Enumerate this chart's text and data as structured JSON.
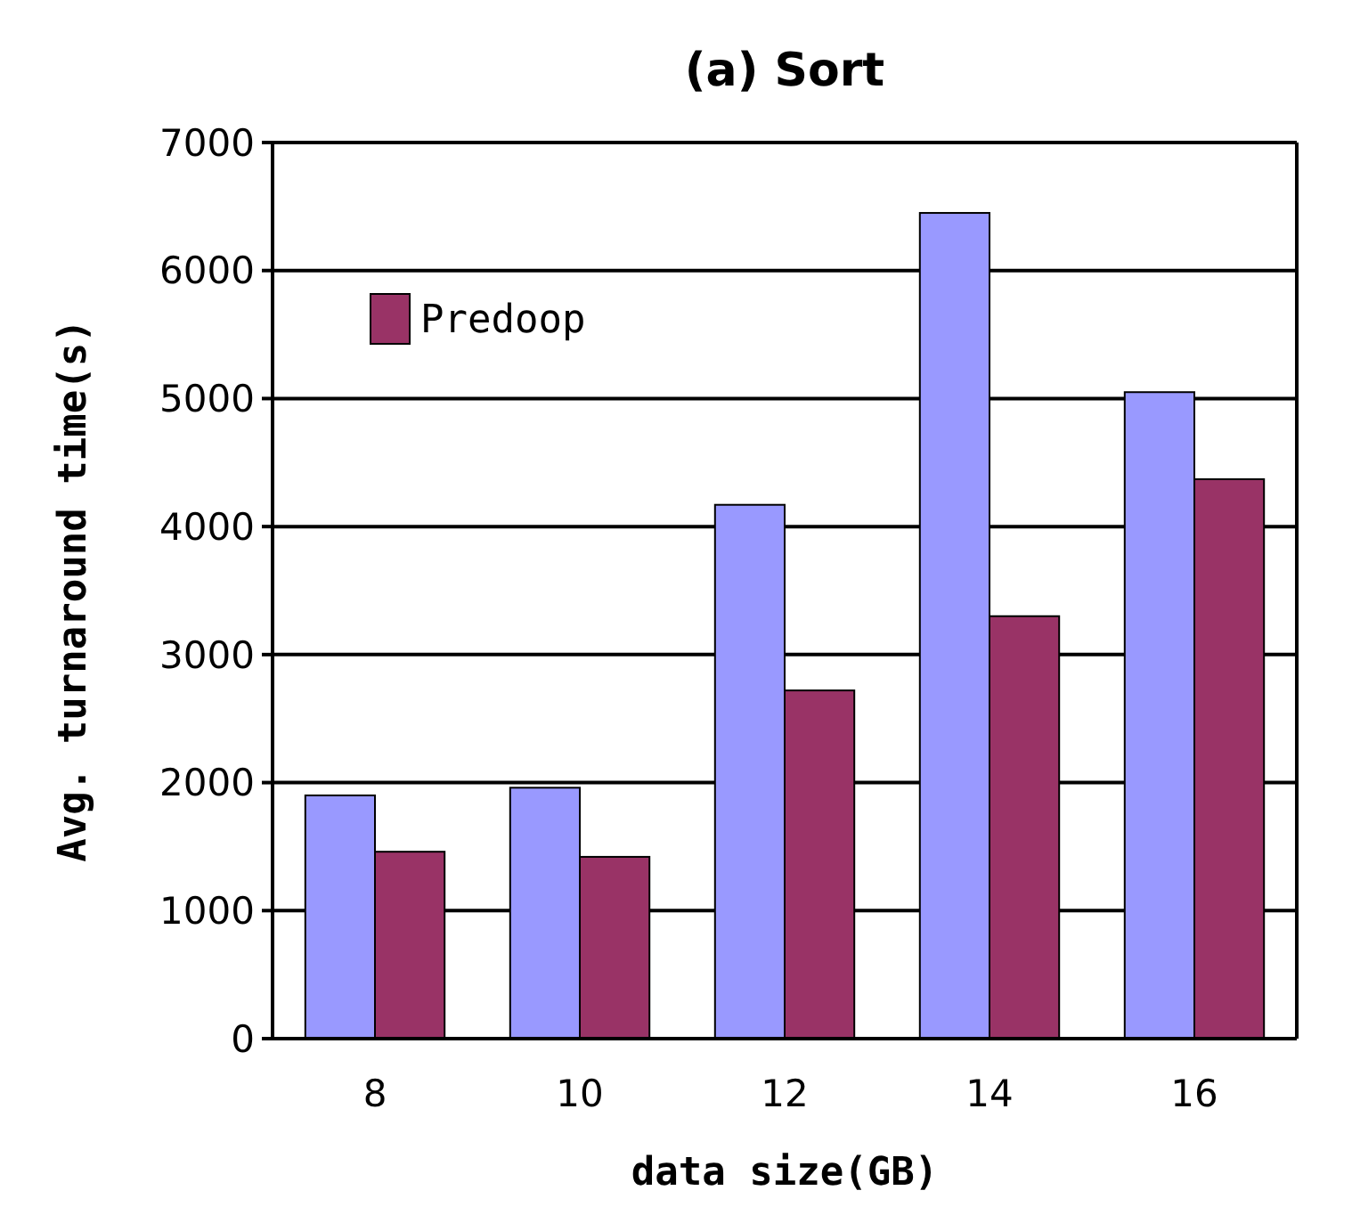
{
  "chart_data": {
    "type": "bar",
    "title": "(a) Sort",
    "xlabel": "data size(GB)",
    "ylabel": "Avg. turnaround time(s)",
    "categories": [
      "8",
      "10",
      "12",
      "14",
      "16"
    ],
    "series": [
      {
        "color": "#9999ff",
        "values": [
          1900,
          1960,
          4170,
          6450,
          5050
        ]
      },
      {
        "name": "Predoop",
        "color": "#993366",
        "values": [
          1460,
          1420,
          2720,
          3300,
          4370
        ]
      }
    ],
    "ylim": [
      0,
      7000
    ],
    "yticks": [
      0,
      1000,
      2000,
      3000,
      4000,
      5000,
      6000,
      7000
    ],
    "grid": "y",
    "legend": "top left"
  }
}
